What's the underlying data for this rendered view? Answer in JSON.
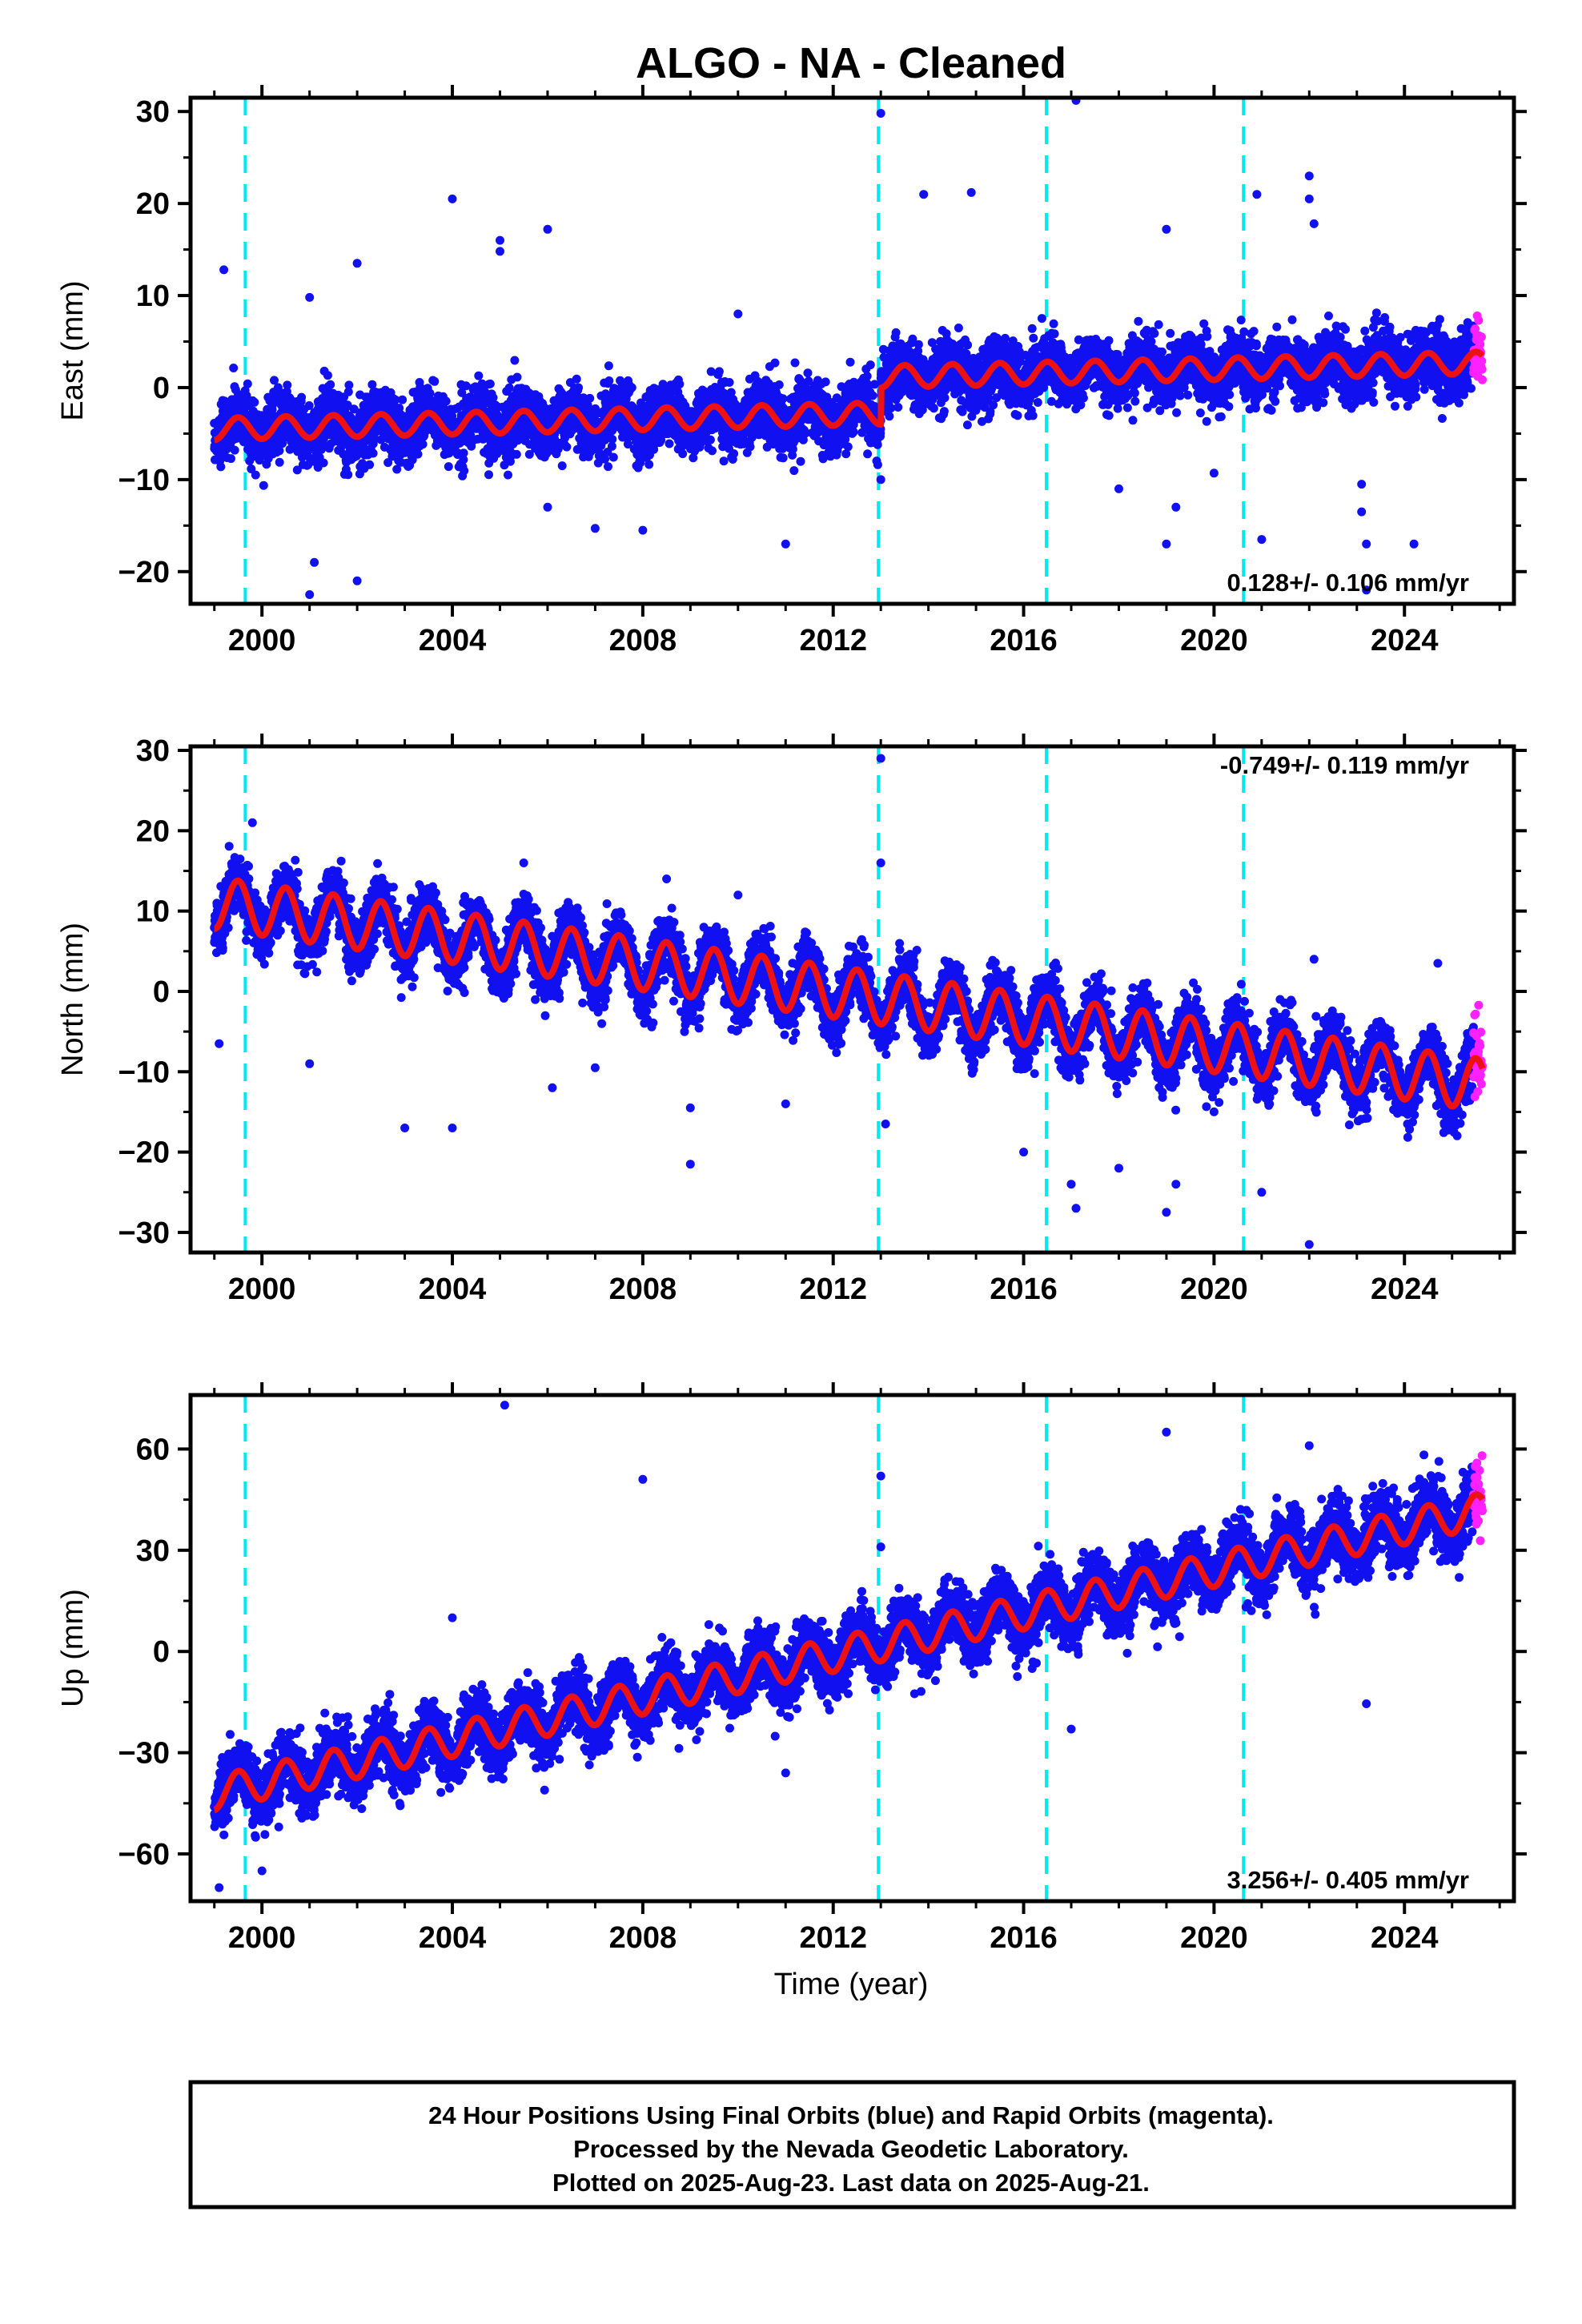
{
  "colors": {
    "final_orbits": "#1010f0",
    "rapid_orbits": "#ff20ff",
    "model_fit": "#ee1111",
    "offset_lines": "#00e8f0",
    "axes": "#000000"
  },
  "chart_data": {
    "type": "scatter",
    "title": "ALGO  - NA - Cleaned",
    "xlabel": "Time (year)",
    "xlim": [
      1998.5,
      2026.3
    ],
    "x_ticks": [
      2000,
      2004,
      2008,
      2012,
      2016,
      2020,
      2024
    ],
    "x_tick_labels": [
      "2000",
      "2004",
      "2008",
      "2012",
      "2016",
      "2020",
      "2024"
    ],
    "offsets_years": [
      1999.65,
      2012.95,
      2016.48,
      2020.62
    ],
    "data_start": 1999.0,
    "data_end": 2025.64,
    "rapid_start": 2025.45,
    "panels": [
      {
        "name": "east",
        "ylabel": "East (mm)",
        "ylim": [
          -23.5,
          31.5
        ],
        "y_ticks": [
          -20,
          -10,
          0,
          10,
          20,
          30
        ],
        "y_tick_labels": [
          "−20",
          "−10",
          "0",
          "10",
          "20",
          "30"
        ],
        "rate_label": "0.128+/- 0.106 mm/yr",
        "rate_position": "bottom-right",
        "model": {
          "start_value": -4.5,
          "trend": 0.12,
          "amplitude": 1.2,
          "scatter": 1.6,
          "step_2013": 4.0
        },
        "trend_points": [
          [
            1999.0,
            -4.5
          ],
          [
            2004,
            -3.2
          ],
          [
            2008,
            -2.5
          ],
          [
            2012.9,
            -1.5
          ],
          [
            2013.0,
            2.5
          ],
          [
            2016,
            3.0
          ],
          [
            2020,
            3.5
          ],
          [
            2025.6,
            4.5
          ]
        ],
        "outliers": [
          [
            1999.2,
            12.8
          ],
          [
            2001.0,
            9.8
          ],
          [
            2001.0,
            -22.5
          ],
          [
            2001.1,
            -19.0
          ],
          [
            2002.0,
            -21.0
          ],
          [
            2002.0,
            13.5
          ],
          [
            2004.0,
            20.5
          ],
          [
            2005.0,
            16.0
          ],
          [
            2005.0,
            14.8
          ],
          [
            2006.0,
            17.2
          ],
          [
            2006.0,
            -13.0
          ],
          [
            2007.0,
            -15.3
          ],
          [
            2008.0,
            -15.5
          ],
          [
            2010.0,
            8.0
          ],
          [
            2011.0,
            -17.0
          ],
          [
            2013.0,
            29.8
          ],
          [
            2013.0,
            -10.0
          ],
          [
            2013.9,
            21.0
          ],
          [
            2014.9,
            21.2
          ],
          [
            2017.1,
            31.2
          ],
          [
            2018.0,
            -11.0
          ],
          [
            2019.0,
            17.2
          ],
          [
            2019.0,
            -17.0
          ],
          [
            2019.2,
            -13.0
          ],
          [
            2020.0,
            -9.3
          ],
          [
            2020.9,
            21.0
          ],
          [
            2021.0,
            -16.5
          ],
          [
            2022.0,
            23.0
          ],
          [
            2022.0,
            20.5
          ],
          [
            2022.1,
            17.8
          ],
          [
            2023.1,
            -10.5
          ],
          [
            2023.1,
            -13.5
          ],
          [
            2023.2,
            -17.0
          ],
          [
            2023.2,
            -22.0
          ],
          [
            2024.2,
            -17.0
          ]
        ]
      },
      {
        "name": "north",
        "ylabel": "North (mm)",
        "ylim": [
          -32.5,
          30.5
        ],
        "y_ticks": [
          -30,
          -20,
          -10,
          0,
          10,
          20,
          30
        ],
        "y_tick_labels": [
          "−30",
          "−20",
          "−10",
          "0",
          "10",
          "20",
          "30"
        ],
        "rate_label": "-0.749+/- 0.119 mm/yr",
        "rate_position": "top-right",
        "model": {
          "start_value": 11.0,
          "trend": -0.85,
          "amplitude": 3.2,
          "scatter": 1.8,
          "step_2013": 0.0
        },
        "trend_points": [
          [
            1999.0,
            11.0
          ],
          [
            2004,
            6.8
          ],
          [
            2008,
            3.4
          ],
          [
            2012,
            0.0
          ],
          [
            2016,
            -3.4
          ],
          [
            2020,
            -6.8
          ],
          [
            2025.6,
            -11.6
          ]
        ],
        "outliers": [
          [
            1999.1,
            -6.5
          ],
          [
            1999.8,
            21.0
          ],
          [
            2001.0,
            -9.0
          ],
          [
            2003.0,
            -17.0
          ],
          [
            2004.0,
            -17.0
          ],
          [
            2005.5,
            16.0
          ],
          [
            2006.1,
            -12.0
          ],
          [
            2007.0,
            -9.5
          ],
          [
            2008.5,
            14.0
          ],
          [
            2009.0,
            -21.5
          ],
          [
            2009.0,
            -14.5
          ],
          [
            2010.0,
            12.0
          ],
          [
            2011.0,
            -14.0
          ],
          [
            2013.0,
            29.0
          ],
          [
            2013.0,
            16.0
          ],
          [
            2013.1,
            -16.5
          ],
          [
            2016.0,
            -20.0
          ],
          [
            2017.0,
            -24.0
          ],
          [
            2017.1,
            -27.0
          ],
          [
            2018.0,
            -22.0
          ],
          [
            2019.0,
            -27.5
          ],
          [
            2019.2,
            -24.0
          ],
          [
            2020.0,
            -15.0
          ],
          [
            2021.0,
            -25.0
          ],
          [
            2022.0,
            -31.5
          ],
          [
            2022.1,
            4.0
          ],
          [
            2024.7,
            3.5
          ]
        ]
      },
      {
        "name": "up",
        "ylabel": "Up (mm)",
        "ylim": [
          -74,
          76
        ],
        "y_ticks": [
          -60,
          -30,
          0,
          30,
          60
        ],
        "y_tick_labels": [
          "−60",
          "−30",
          "0",
          "30",
          "60"
        ],
        "rate_label": "3.256+/- 0.405 mm/yr",
        "rate_position": "bottom-right",
        "model": {
          "start_value": -42.0,
          "trend": 3.15,
          "amplitude": 5.0,
          "scatter": 4.5,
          "step_2013": 0.0
        },
        "trend_points": [
          [
            1999.0,
            -42.0
          ],
          [
            2004,
            -26.3
          ],
          [
            2008,
            -13.7
          ],
          [
            2012,
            -1.1
          ],
          [
            2016,
            11.5
          ],
          [
            2020,
            24.1
          ],
          [
            2025.6,
            41.8
          ]
        ],
        "outliers": [
          [
            1999.1,
            -70.0
          ],
          [
            2000.0,
            -65.0
          ],
          [
            2004.0,
            10.0
          ],
          [
            2005.1,
            73.0
          ],
          [
            2008.0,
            51.0
          ],
          [
            2011.0,
            -36.0
          ],
          [
            2013.0,
            52.0
          ],
          [
            2013.0,
            31.0
          ],
          [
            2017.0,
            -23.0
          ],
          [
            2019.0,
            65.0
          ],
          [
            2022.0,
            61.0
          ],
          [
            2023.2,
            -15.5
          ]
        ]
      }
    ]
  },
  "footer": {
    "line1": "24 Hour Positions Using Final Orbits (blue) and Rapid Orbits (magenta).",
    "line2": "Processed by the Nevada Geodetic Laboratory.",
    "line3": "Plotted on 2025-Aug-23. Last data on 2025-Aug-21."
  }
}
